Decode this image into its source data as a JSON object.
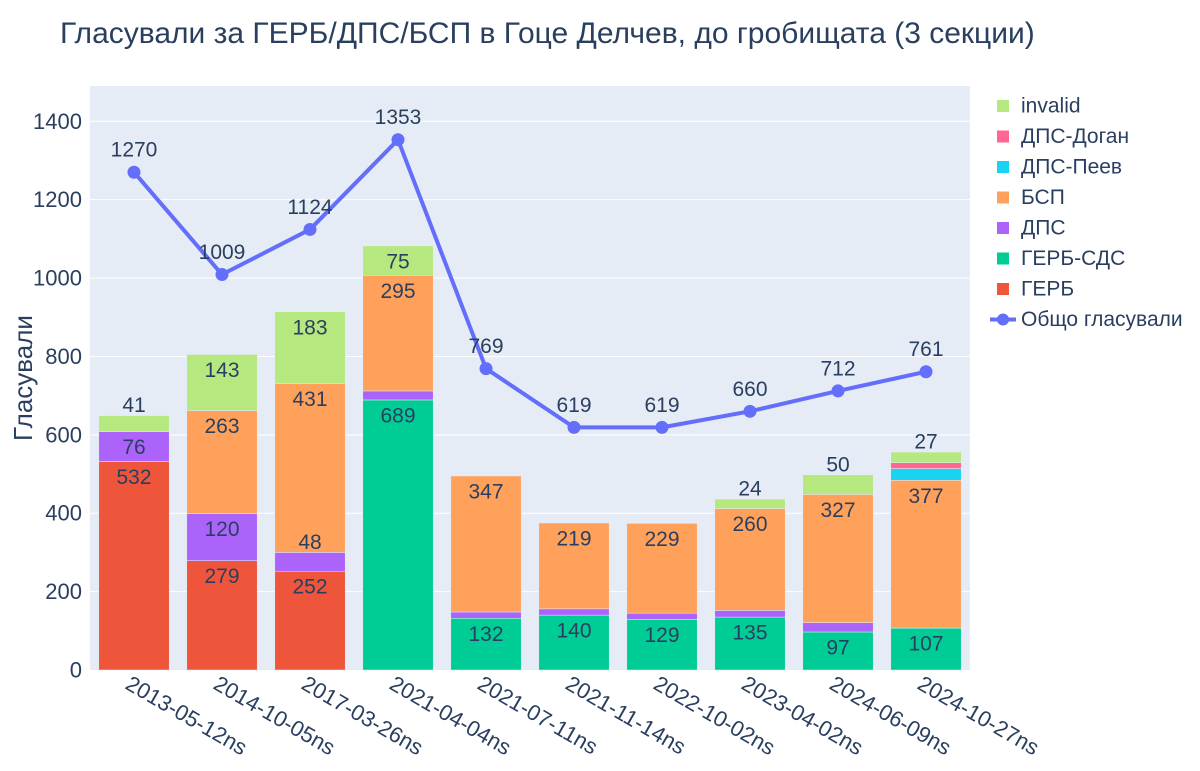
{
  "chart_data": {
    "type": "bar",
    "title": "Гласували за ГЕРБ/ДПС/БСП в Гоце Делчев, до гробищата (3 секции)",
    "xlabel": "",
    "ylabel": "Гласували",
    "ylim": [
      0,
      1490
    ],
    "yticks": [
      0,
      200,
      400,
      600,
      800,
      1000,
      1200,
      1400
    ],
    "grid": true,
    "legend_position": "right",
    "barmode": "stack",
    "categories": [
      "2013-05-12ns",
      "2014-10-05ns",
      "2017-03-26ns",
      "2021-04-04ns",
      "2021-07-11ns",
      "2021-11-14ns",
      "2022-10-02ns",
      "2023-04-02ns",
      "2024-06-09ns",
      "2024-10-27ns"
    ],
    "series": [
      {
        "name": "ГЕРБ",
        "color": "#ef553b",
        "values": [
          532,
          279,
          252,
          0,
          0,
          0,
          0,
          0,
          0,
          0
        ],
        "labels": [
          "532",
          "279",
          "252",
          "",
          "",
          "",
          "",
          "",
          "",
          ""
        ]
      },
      {
        "name": "ГЕРБ-СДС",
        "color": "#00cc96",
        "values": [
          0,
          0,
          0,
          689,
          132,
          140,
          129,
          135,
          97,
          107
        ],
        "labels": [
          "",
          "",
          "",
          "689",
          "132",
          "140",
          "129",
          "135",
          "97",
          "107"
        ]
      },
      {
        "name": "ДПС",
        "color": "#ab63fa",
        "values": [
          76,
          120,
          48,
          23,
          16,
          16,
          16,
          17,
          24,
          0
        ],
        "labels": [
          "76",
          "120",
          "48",
          "",
          "",
          "",
          "",
          "",
          "",
          ""
        ]
      },
      {
        "name": "БСП",
        "color": "#ffa15a",
        "values": [
          0,
          263,
          431,
          295,
          347,
          219,
          229,
          260,
          327,
          377
        ],
        "labels": [
          "",
          "263",
          "431",
          "295",
          "347",
          "219",
          "229",
          "260",
          "327",
          "377"
        ]
      },
      {
        "name": "ДПС-Пеев",
        "color": "#19d3f3",
        "values": [
          0,
          0,
          0,
          0,
          0,
          0,
          0,
          0,
          0,
          30
        ],
        "labels": [
          "",
          "",
          "",
          "",
          "",
          "",
          "",
          "",
          "",
          ""
        ]
      },
      {
        "name": "ДПС-Доган",
        "color": "#ff6692",
        "values": [
          0,
          0,
          0,
          0,
          0,
          0,
          0,
          0,
          0,
          15
        ],
        "labels": [
          "",
          "",
          "",
          "",
          "",
          "",
          "",
          "",
          "",
          ""
        ]
      },
      {
        "name": "invalid",
        "color": "#b6e880",
        "values": [
          41,
          143,
          183,
          75,
          0,
          0,
          0,
          24,
          50,
          27
        ],
        "labels": [
          "41",
          "143",
          "183",
          "75",
          "",
          "",
          "",
          "24",
          "50",
          "27"
        ]
      }
    ],
    "line": {
      "name": "Общо гласували",
      "color": "#636efa",
      "values": [
        1270,
        1009,
        1124,
        1353,
        769,
        619,
        619,
        660,
        712,
        761
      ]
    },
    "legend_order": [
      "invalid",
      "ДПС-Доган",
      "ДПС-Пеев",
      "БСП",
      "ДПС",
      "ГЕРБ-СДС",
      "ГЕРБ",
      "Общо гласували"
    ]
  }
}
